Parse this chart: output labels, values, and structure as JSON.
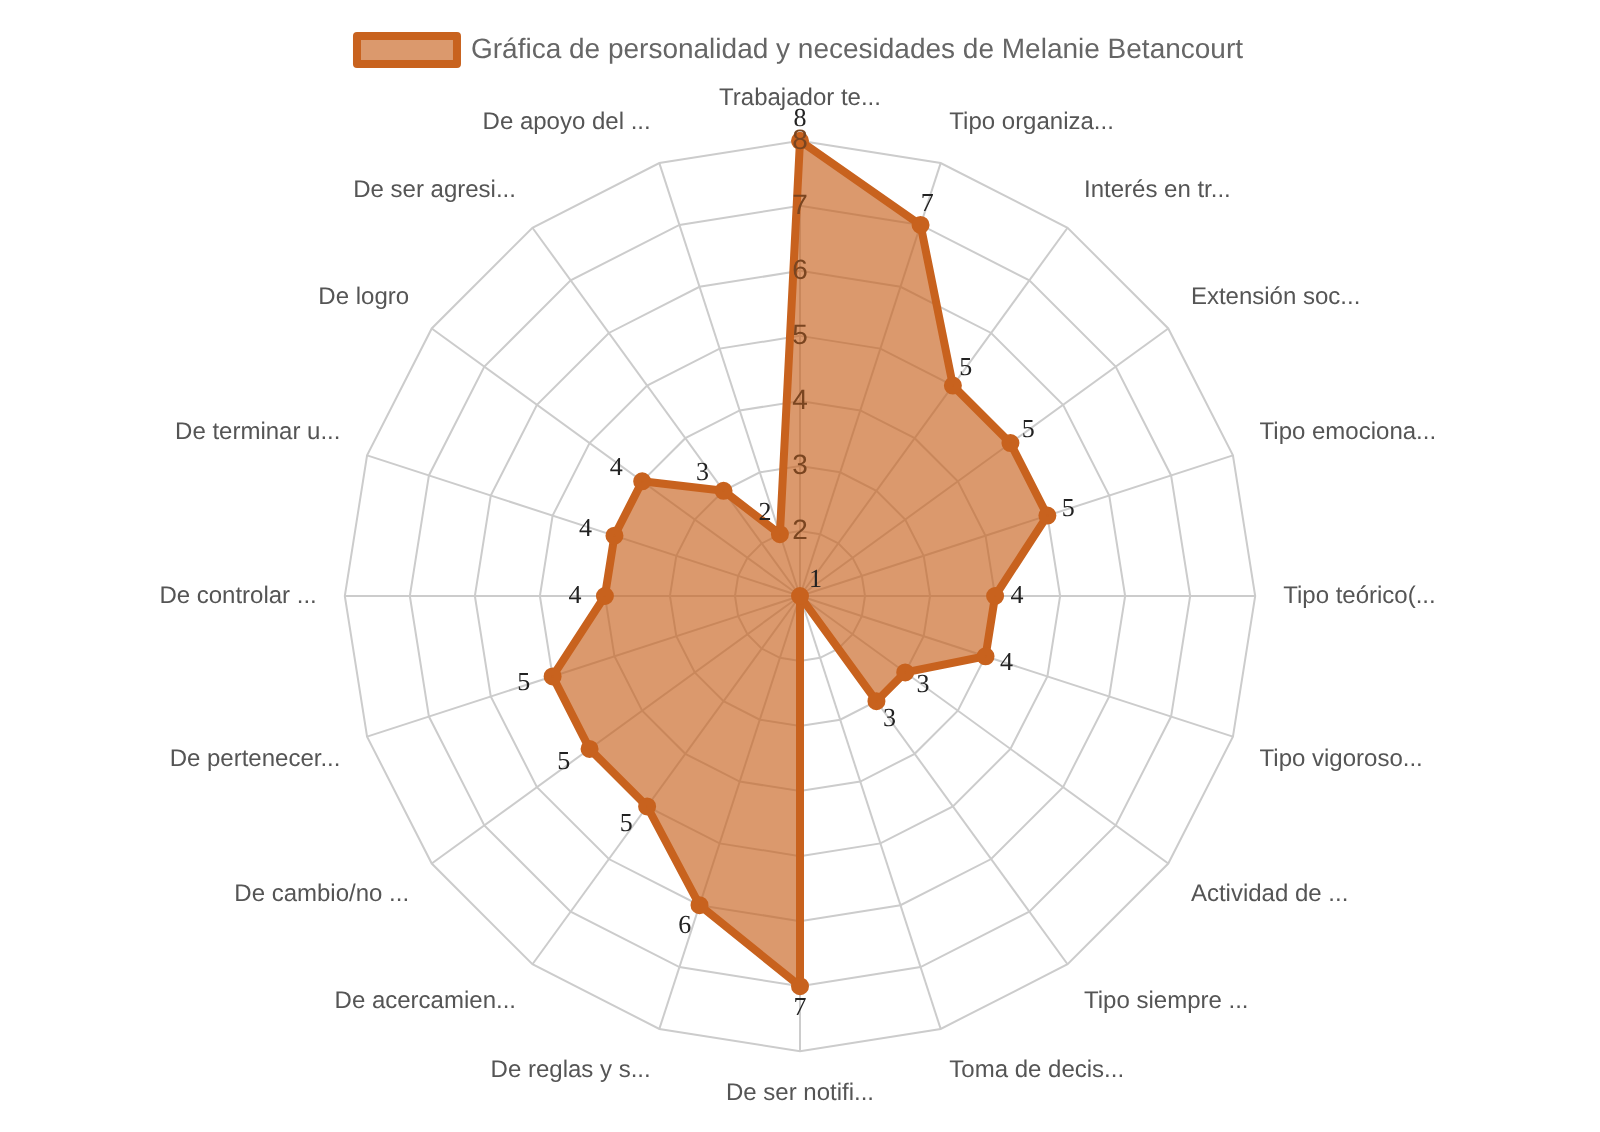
{
  "chart_data": {
    "type": "radar",
    "legend": "top",
    "grid": true,
    "data_labels": true,
    "categories": [
      "Trabajador te...",
      "Tipo organiza...",
      "Interés en tr...",
      "Extensión soc...",
      "Tipo emociona...",
      "Tipo teórico(...",
      "Tipo vigoroso...",
      "Actividad de ...",
      "Tipo siempre ...",
      "Toma de decis...",
      "De ser notifi...",
      "De reglas y s...",
      "De acercamien...",
      "De cambio/no ...",
      "De pertenecer...",
      "De controlar ...",
      "De terminar u...",
      "De logro",
      "De ser agresi...",
      "De apoyo del ..."
    ],
    "series": [
      {
        "name": "Gráfica de personalidad y necesidades de Melanie Betancourt",
        "color": "#c8621e",
        "values": [
          8,
          7,
          5,
          5,
          5,
          4,
          4,
          3,
          3,
          1,
          7,
          6,
          5,
          5,
          5,
          4,
          4,
          4,
          3,
          2
        ]
      }
    ],
    "ylim": [
      1,
      8
    ],
    "yticks": [
      2,
      3,
      4,
      5,
      6,
      7,
      8
    ]
  }
}
